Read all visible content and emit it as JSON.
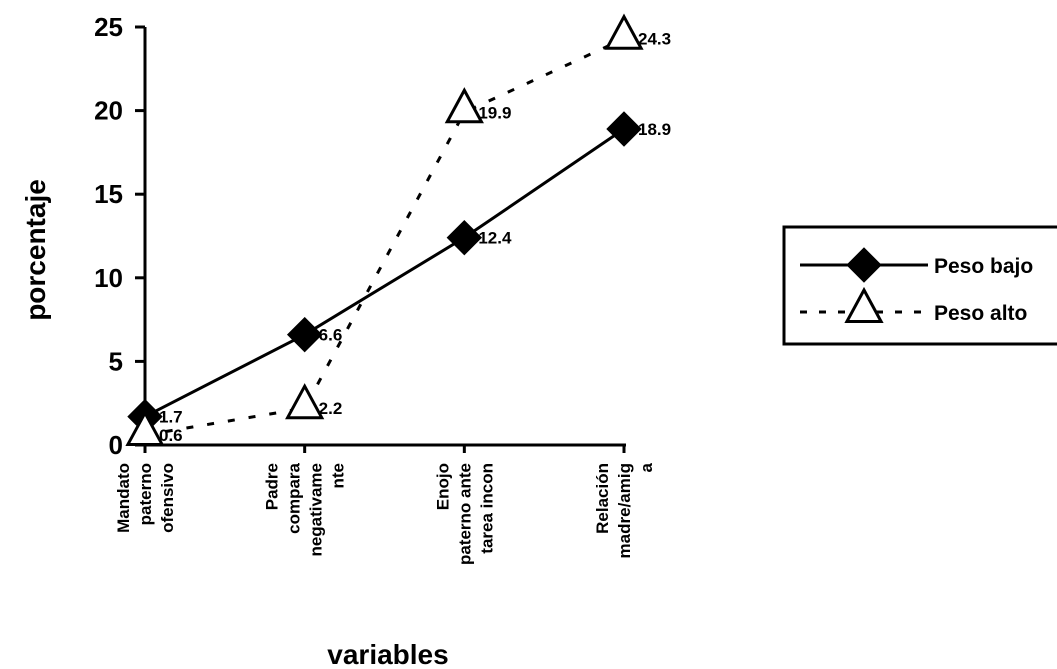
{
  "chart_data": {
    "type": "line",
    "categories": [
      [
        "Mandato",
        "paterno",
        "ofensivo"
      ],
      [
        "Padre",
        "compara",
        "negativame",
        "nte"
      ],
      [
        "Enojo",
        "paterno ante",
        "tarea incon"
      ],
      [
        "Relación",
        "madre/amig",
        "a"
      ]
    ],
    "series": [
      {
        "name": "Peso bajo",
        "values": [
          1.7,
          6.6,
          12.4,
          18.9
        ],
        "labels": [
          "1.7",
          "6.6",
          "12.4",
          "18.9"
        ],
        "marker": "diamond",
        "line": "solid"
      },
      {
        "name": "Peso alto",
        "values": [
          0.6,
          2.2,
          19.9,
          24.3
        ],
        "labels": [
          "0.6",
          "2.2",
          "19.9",
          "24.3"
        ],
        "marker": "triangle",
        "line": "dashed"
      }
    ],
    "xlabel": "variables",
    "ylabel": "porcentaje",
    "ylim": [
      0,
      25
    ],
    "yticks": [
      "0",
      "5",
      "10",
      "15",
      "20",
      "25"
    ],
    "grid": false,
    "legend": "right"
  }
}
